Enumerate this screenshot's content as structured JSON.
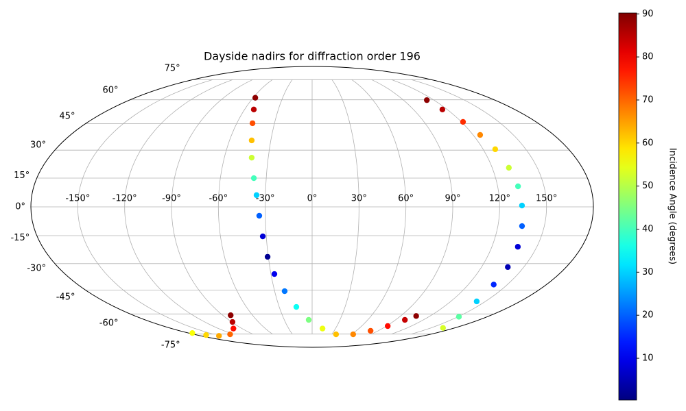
{
  "chart_data": {
    "type": "scatter",
    "projection": "mollweide",
    "colormap": "jet",
    "title": "Dayside nadirs for diffraction order 196",
    "x": [
      -57.8,
      -51.8,
      -47.5,
      -43.9,
      -41.3,
      -38.1,
      -35.7,
      -33.9,
      -32.3,
      -30.5,
      -27.5,
      -22.0,
      -14.4,
      -3.7,
      13.3,
      36.5,
      62.6,
      79.6,
      91.5,
      100.0,
      105.8,
      113.0,
      115.7,
      121.3,
      125.2,
      128.5,
      131.1,
      133.2,
      134.3,
      135.6,
      137.3,
      138.6,
      139.5,
      142.4,
      150.8,
      165.2,
      -82.0,
      -89.0,
      -100.9,
      -125.1,
      -150.7,
      -166.0,
      -174.6
    ],
    "values": [
      61.4,
      53.7,
      45.3,
      35.4,
      25.9,
      15.0,
      6.1,
      -4.6,
      -15.4,
      -26.3,
      -35.8,
      -45.7,
      -55.4,
      -64.1,
      -70.5,
      -75.2,
      -75.2,
      -72.3,
      -68.6,
      -64.1,
      -61.4,
      59.8,
      53.7,
      46.1,
      38.5,
      30.5,
      20.5,
      10.7,
      0.7,
      -10.0,
      -20.9,
      -31.9,
      -41.8,
      -51.9,
      -61.9,
      -70.0,
      -60.9,
      -65.6,
      -70.5,
      -75.2,
      -76.5,
      -75.8,
      -74.1
    ],
    "color_values": [
      89,
      85,
      72,
      62,
      52,
      40,
      30,
      20,
      8,
      2,
      10,
      22,
      35,
      45,
      55,
      62,
      67,
      72,
      78,
      84,
      89,
      89,
      85,
      75,
      67,
      60,
      52,
      40,
      30,
      20,
      8,
      5,
      15,
      30,
      42,
      53,
      89,
      85,
      78,
      70,
      64,
      60,
      56
    ],
    "xlim": [
      -180,
      180
    ],
    "ylim": [
      -90,
      90
    ],
    "xticks": [
      {
        "value": -150,
        "label": "-150°"
      },
      {
        "value": -120,
        "label": "-120°"
      },
      {
        "value": -90,
        "label": "-90°"
      },
      {
        "value": -60,
        "label": "-60°"
      },
      {
        "value": -30,
        "label": "-30°"
      },
      {
        "value": 0,
        "label": "0°"
      },
      {
        "value": 30,
        "label": "30°"
      },
      {
        "value": 60,
        "label": "60°"
      },
      {
        "value": 90,
        "label": "90°"
      },
      {
        "value": 120,
        "label": "120°"
      },
      {
        "value": 150,
        "label": "150°"
      }
    ],
    "yticks": [
      {
        "value": -75,
        "label": "-75°"
      },
      {
        "value": -60,
        "label": "-60°"
      },
      {
        "value": -45,
        "label": "-45°"
      },
      {
        "value": -30,
        "label": "-30°"
      },
      {
        "value": -15,
        "label": "-15°"
      },
      {
        "value": 0,
        "label": "0°"
      },
      {
        "value": 15,
        "label": "15°"
      },
      {
        "value": 30,
        "label": "30°"
      },
      {
        "value": 45,
        "label": "45°"
      },
      {
        "value": 60,
        "label": "60°"
      },
      {
        "value": 75,
        "label": "75°"
      }
    ],
    "grid": true,
    "colorbar": {
      "label": "Incidence Angle (degrees)",
      "lim": [
        0.3,
        90.2
      ],
      "ticks": [
        10,
        20,
        30,
        40,
        50,
        60,
        70,
        80,
        90
      ]
    }
  }
}
